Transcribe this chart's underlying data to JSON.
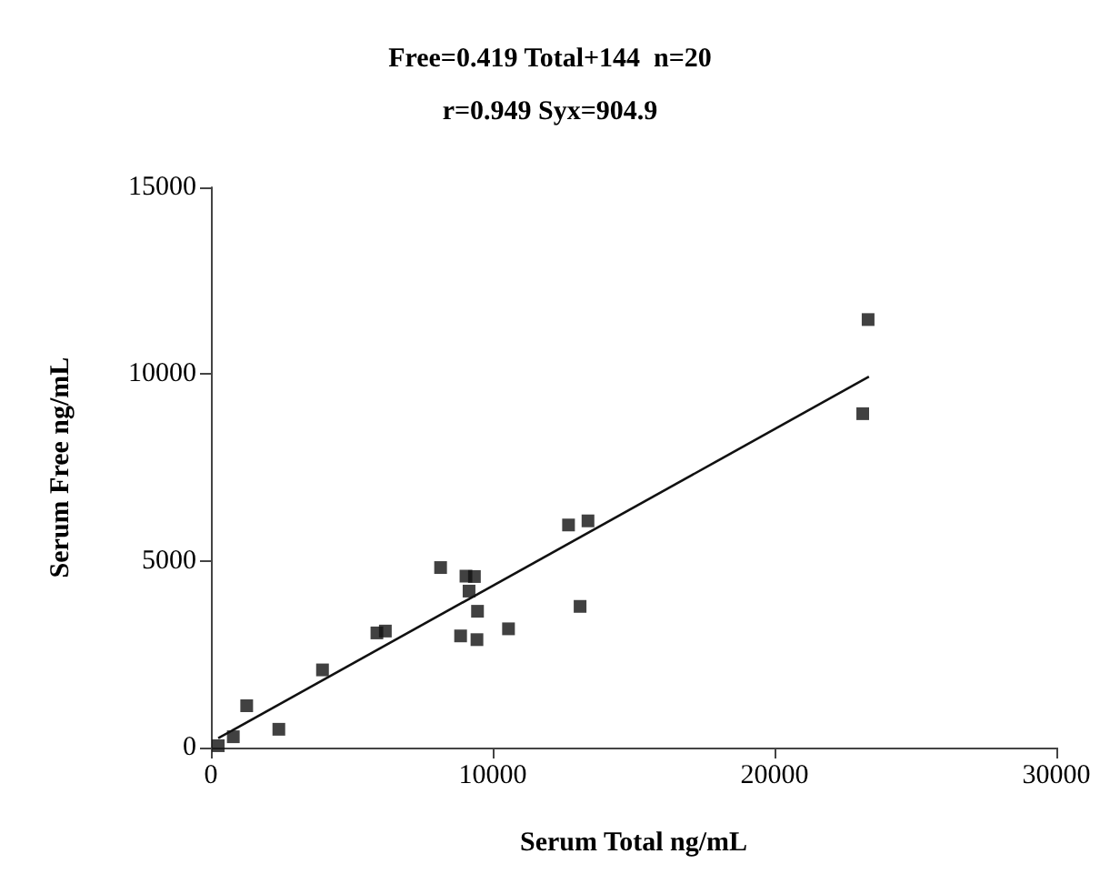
{
  "chart_data": {
    "type": "scatter",
    "title": "Free=0.419 Total+144  n=20",
    "subtitle": "r=0.949 Syx=904.9",
    "xlabel": "Serum Total ng/mL",
    "ylabel": "Serum Free ng/mL",
    "xlim": [
      0,
      30000
    ],
    "xticks": [
      0,
      10000,
      20000,
      30000
    ],
    "ylim": [
      0,
      15000
    ],
    "yticks": [
      0,
      5000,
      10000,
      15000
    ],
    "grid": false,
    "marker": "square",
    "series": [
      {
        "color": "#111111",
        "x": [
          260,
          795,
          1270,
          2410,
          3960,
          5890,
          6190,
          8150,
          8860,
          9050,
          9350,
          9160,
          9460,
          9440,
          10560,
          12690,
          13380,
          13100,
          23320,
          23130
        ],
        "values": [
          50,
          290,
          1120,
          490,
          2080,
          3070,
          3120,
          4820,
          2990,
          4590,
          4580,
          4190,
          3650,
          2890,
          3180,
          5960,
          6070,
          3780,
          11460,
          8940
        ]
      },
      {
        "type": "line",
        "color": "#111111",
        "x": [
          260,
          23350
        ],
        "values": [
          250,
          9930
        ],
        "marker": "none",
        "line_style": "solid"
      }
    ]
  }
}
